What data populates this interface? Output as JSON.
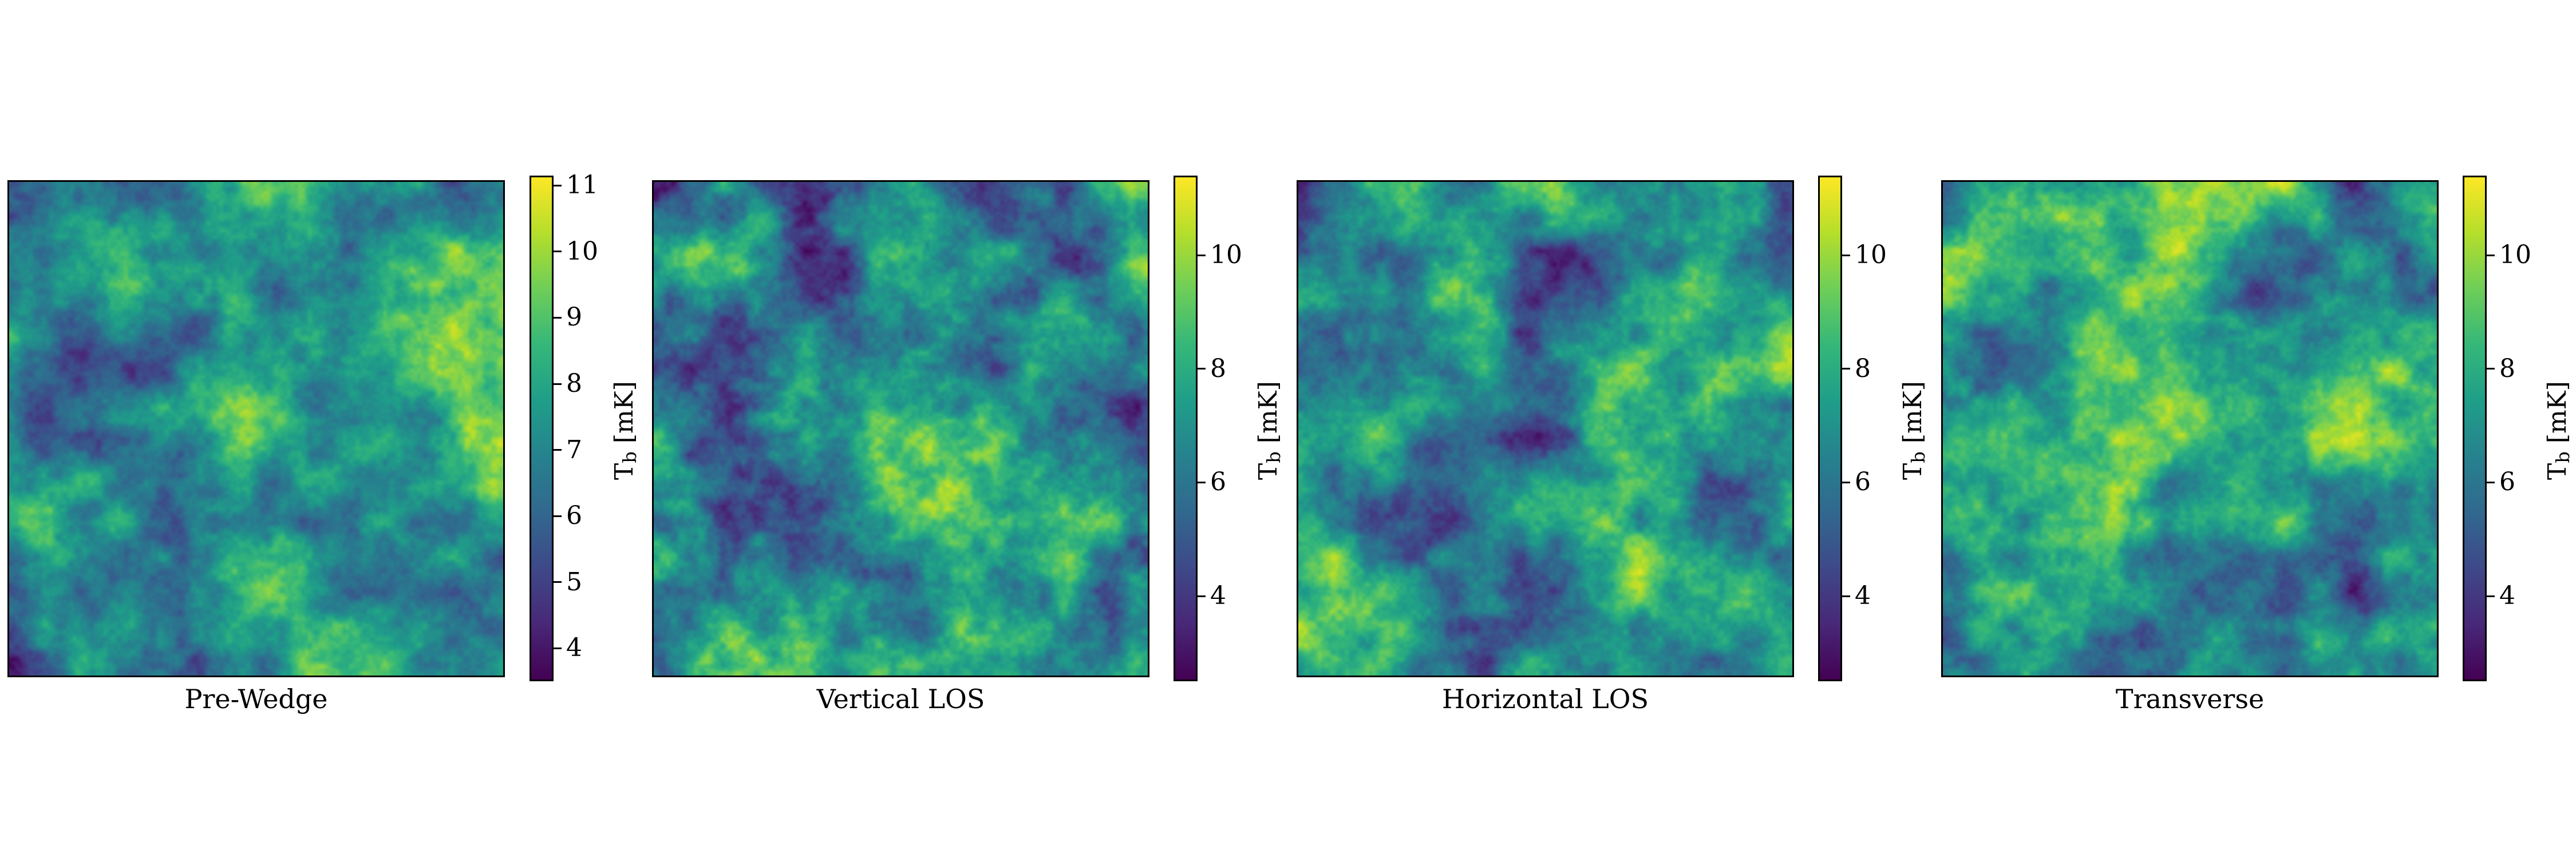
{
  "colormap": {
    "name": "viridis",
    "stops": [
      "#440154",
      "#482878",
      "#3e4989",
      "#31688e",
      "#26828e",
      "#1f9e89",
      "#35b779",
      "#6ece58",
      "#b5de2b",
      "#fde725"
    ]
  },
  "chart_data": [
    {
      "type": "heatmap",
      "title": "Pre-Wedge",
      "colorbar": {
        "label": "T_b [mK]",
        "label_main": "T",
        "label_sub": "b",
        "label_unit": " [mK]",
        "range": [
          3.5,
          11.15
        ],
        "ticks": [
          4,
          5,
          6,
          7,
          8,
          9,
          10,
          11
        ]
      },
      "value_range": [
        3.5,
        11.15
      ],
      "mean": 7.3,
      "seed": 11
    },
    {
      "type": "heatmap",
      "title": "Vertical LOS",
      "colorbar": {
        "label": "T_b [mK]",
        "label_main": "T",
        "label_sub": "b",
        "label_unit": " [mK]",
        "range": [
          2.5,
          11.4
        ],
        "ticks": [
          4,
          6,
          8,
          10
        ]
      },
      "value_range": [
        2.5,
        11.4
      ],
      "mean": 7.0,
      "seed": 23
    },
    {
      "type": "heatmap",
      "title": "Horizontal LOS",
      "colorbar": {
        "label": "T_b [mK]",
        "label_main": "T",
        "label_sub": "b",
        "label_unit": " [mK]",
        "range": [
          2.5,
          11.4
        ],
        "ticks": [
          4,
          6,
          8,
          10
        ]
      },
      "value_range": [
        2.5,
        11.4
      ],
      "mean": 7.1,
      "seed": 37
    },
    {
      "type": "heatmap",
      "title": "Transverse",
      "colorbar": {
        "label": "T_b [mK]",
        "label_main": "T",
        "label_sub": "b",
        "label_unit": " [mK]",
        "range": [
          2.5,
          11.4
        ],
        "ticks": [
          4,
          6,
          8,
          10
        ]
      },
      "value_range": [
        2.5,
        11.4
      ],
      "mean": 7.2,
      "seed": 53
    }
  ]
}
